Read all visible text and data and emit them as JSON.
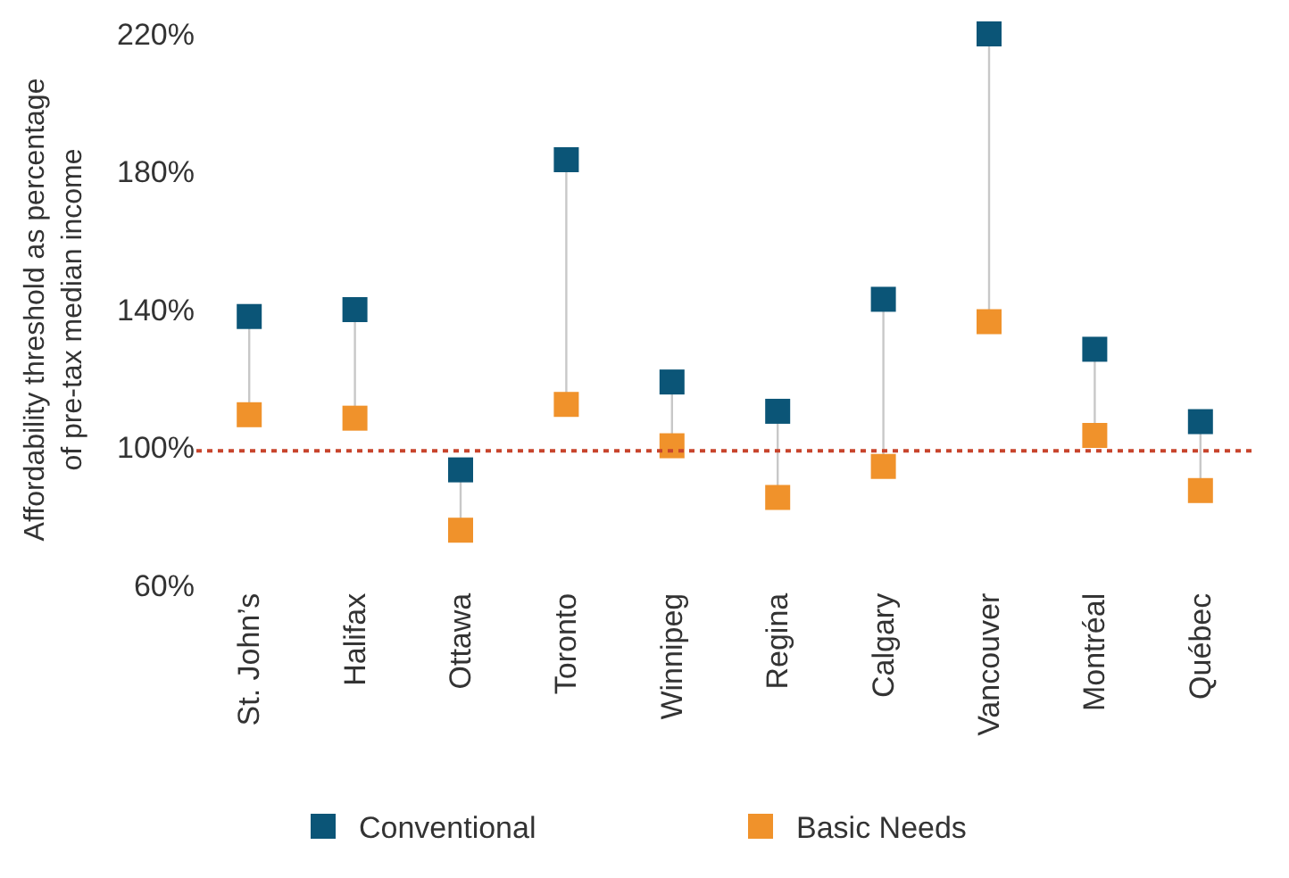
{
  "chart_data": {
    "type": "scatter",
    "ylabel": "Affordability threshold as percentage\nof pre-tax median income",
    "categories": [
      "St. John’s",
      "Halifax",
      "Ottawa",
      "Toronto",
      "Winnipeg",
      "Regina",
      "Calgary",
      "Vancouver",
      "Montréal",
      "Québec"
    ],
    "series": [
      {
        "name": "Conventional",
        "color": "#0b5577",
        "values": [
          138,
          140,
          93.5,
          183.5,
          119,
          110.5,
          143,
          220,
          128.5,
          107.5
        ]
      },
      {
        "name": "Basic Needs",
        "color": "#f0922b",
        "values": [
          109.5,
          108.5,
          76,
          112.5,
          100.5,
          85.5,
          94.5,
          136.5,
          103.5,
          87.5
        ]
      }
    ],
    "ylim": [
      60,
      220
    ],
    "yticks": [
      {
        "value": 60,
        "label": "60%"
      },
      {
        "value": 100,
        "label": "100%"
      },
      {
        "value": 140,
        "label": "140%"
      },
      {
        "value": 180,
        "label": "180%"
      },
      {
        "value": 220,
        "label": "220%"
      }
    ],
    "ref_lines": [
      {
        "axis": "y",
        "value": 99,
        "color": "#c8442c",
        "line_style": "dotted"
      }
    ],
    "marker": "square",
    "legend": "bottom"
  }
}
